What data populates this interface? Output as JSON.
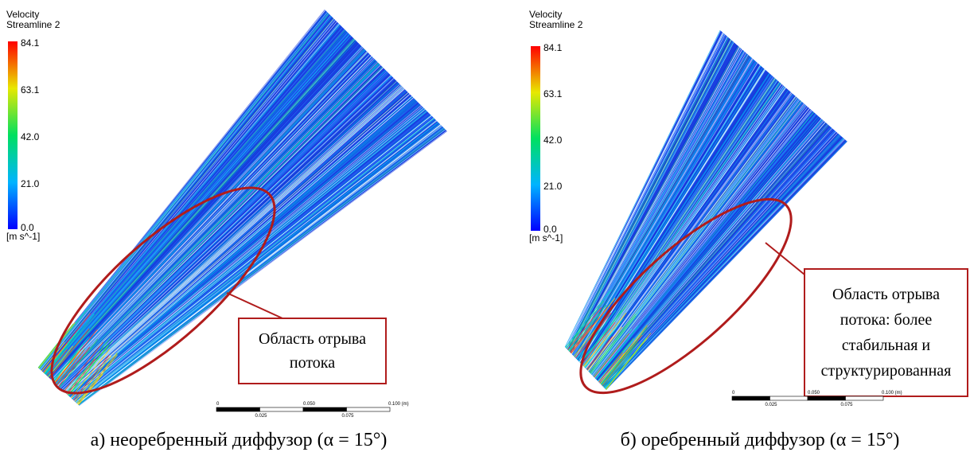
{
  "panels": [
    {
      "legend": {
        "title": "Velocity",
        "subtitle": "Streamline 2",
        "ticks": [
          "84.1",
          "63.1",
          "42.0",
          "21.0",
          "0.0"
        ],
        "unit": "[m s^-1]"
      },
      "annotation": [
        "Область отрыва",
        "потока"
      ],
      "scale_bar": {
        "top": [
          "0",
          "0.050",
          "0.100 (m)"
        ],
        "bottom": [
          "0.025",
          "0.075"
        ]
      },
      "caption": "а) неоребренный диффузор (α = 15°)"
    },
    {
      "legend": {
        "title": "Velocity",
        "subtitle": "Streamline 2",
        "ticks": [
          "84.1",
          "63.1",
          "42.0",
          "21.0",
          "0.0"
        ],
        "unit": "[m s^-1]"
      },
      "annotation": [
        "Область отрыва",
        "потока: более",
        "стабильная и",
        "структурированная"
      ],
      "scale_bar": {
        "top": [
          "0",
          "0.050",
          "0.100 (m)"
        ],
        "bottom": [
          "0.025",
          "0.075"
        ]
      },
      "caption": "б) оребренный диффузор (α = 15°)"
    }
  ]
}
